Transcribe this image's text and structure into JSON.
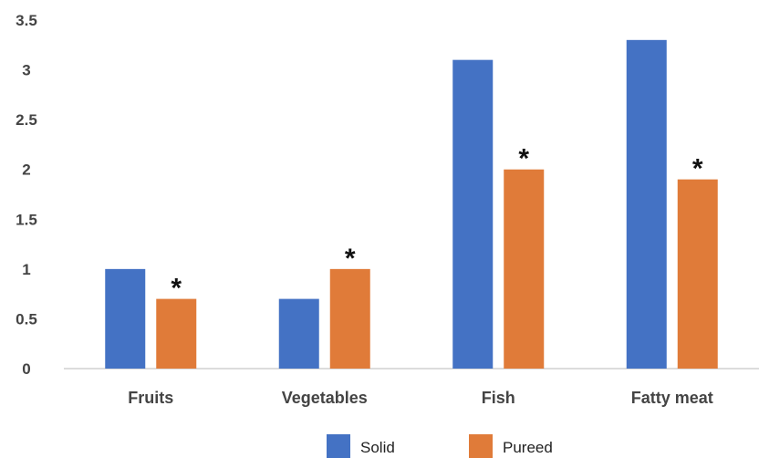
{
  "chart_data": {
    "type": "bar",
    "categories": [
      "Fruits",
      "Vegetables",
      "Fish",
      "Fatty meat"
    ],
    "series": [
      {
        "name": "Solid",
        "color": "#4472C4",
        "values": [
          1.0,
          0.7,
          3.1,
          3.3
        ]
      },
      {
        "name": "Pureed",
        "color": "#E07B39",
        "values": [
          0.7,
          1.0,
          2.0,
          1.9
        ],
        "significance": [
          "*",
          "*",
          "*",
          "*"
        ]
      }
    ],
    "ylim": [
      0,
      3.5
    ],
    "yticks": [
      "0",
      "0.5",
      "1",
      "1.5",
      "2",
      "2.5",
      "3",
      "3.5"
    ],
    "grid": false,
    "legend_position": "bottom"
  }
}
